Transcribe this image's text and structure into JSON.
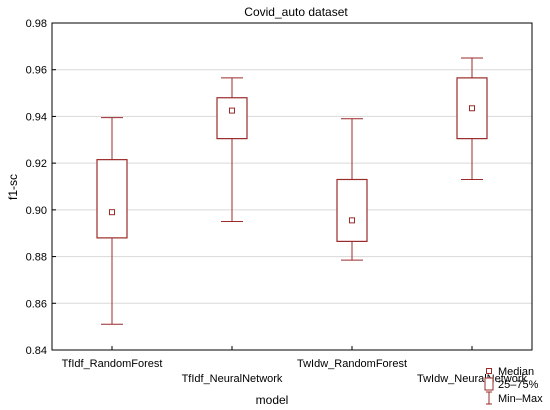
{
  "chart_data": {
    "type": "boxplot",
    "title": "Covid_auto dataset",
    "xlabel": "model",
    "ylabel": "f1-sc",
    "ylim": [
      0.84,
      0.98
    ],
    "yticks": [
      "0.84",
      "0.86",
      "0.88",
      "0.90",
      "0.92",
      "0.94",
      "0.96",
      "0.98"
    ],
    "grid": true,
    "legend_position": "bottom-right",
    "legend": [
      "Median",
      "25–75%",
      "Min–Max"
    ],
    "color": "#9b2a2a",
    "categories": [
      "TfIdf_RandomForest",
      "TfIdf_NeuralNetwork",
      "TwIdw_RandomForest",
      "TwIdw_NeuralNetwork"
    ],
    "boxes": [
      {
        "min": 0.851,
        "q1": 0.888,
        "median": 0.899,
        "q3": 0.9215,
        "max": 0.9395
      },
      {
        "min": 0.895,
        "q1": 0.9305,
        "median": 0.9425,
        "q3": 0.948,
        "max": 0.9565
      },
      {
        "min": 0.8785,
        "q1": 0.8865,
        "median": 0.8955,
        "q3": 0.913,
        "max": 0.939
      },
      {
        "min": 0.913,
        "q1": 0.9305,
        "median": 0.9435,
        "q3": 0.9565,
        "max": 0.965
      }
    ]
  }
}
